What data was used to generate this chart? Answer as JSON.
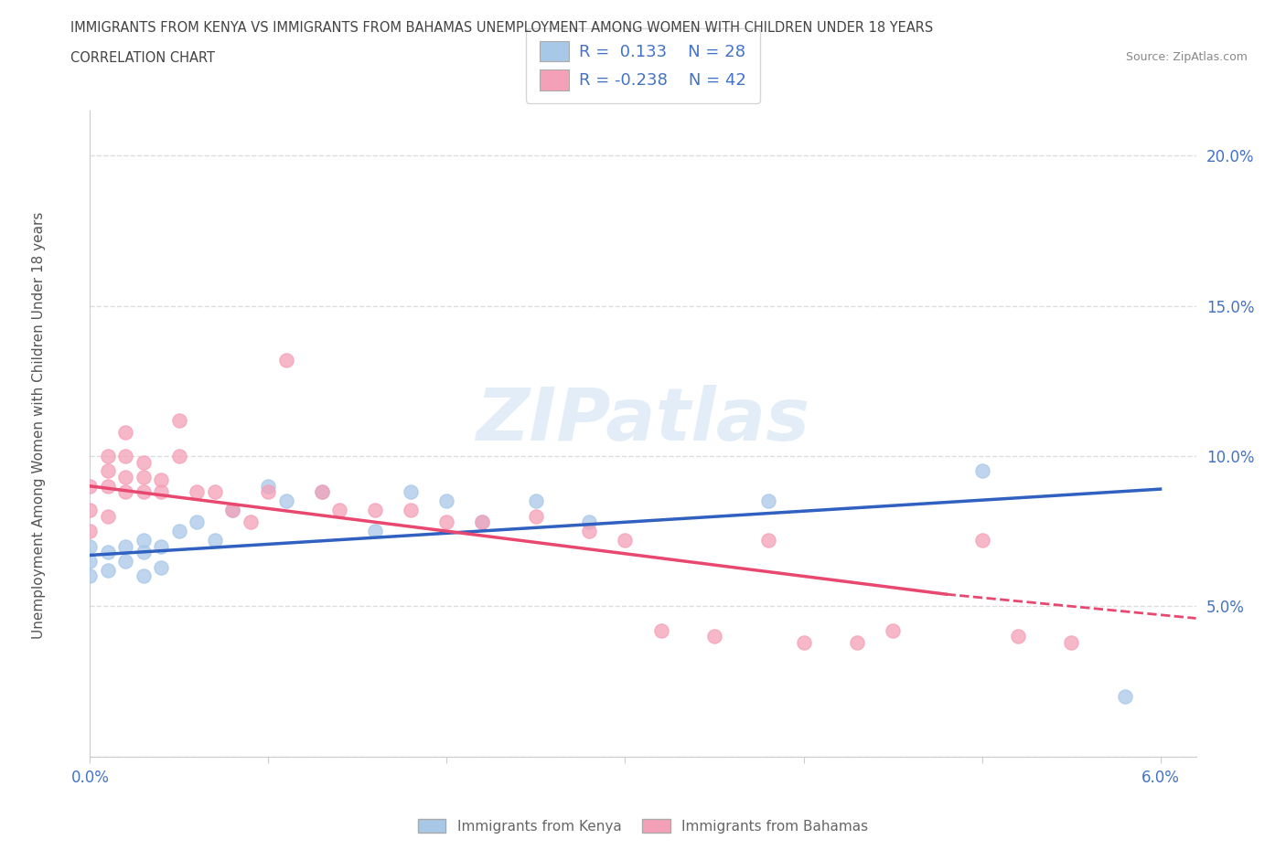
{
  "title_line1": "IMMIGRANTS FROM KENYA VS IMMIGRANTS FROM BAHAMAS UNEMPLOYMENT AMONG WOMEN WITH CHILDREN UNDER 18 YEARS",
  "title_line2": "CORRELATION CHART",
  "source_text": "Source: ZipAtlas.com",
  "ylabel": "Unemployment Among Women with Children Under 18 years",
  "xlim": [
    0.0,
    0.062
  ],
  "ylim": [
    0.0,
    0.215
  ],
  "xticks": [
    0.0,
    0.01,
    0.02,
    0.03,
    0.04,
    0.05,
    0.06
  ],
  "xticklabels": [
    "0.0%",
    "",
    "",
    "",
    "",
    "",
    "6.0%"
  ],
  "yticks": [
    0.0,
    0.05,
    0.1,
    0.15,
    0.2
  ],
  "yticklabels": [
    "",
    "5.0%",
    "10.0%",
    "15.0%",
    "20.0%"
  ],
  "kenya_color": "#a8c8e8",
  "bahamas_color": "#f4a0b8",
  "kenya_line_color": "#3060c0",
  "bahamas_line_color": "#e84870",
  "kenya_R": 0.133,
  "kenya_N": 28,
  "bahamas_R": -0.238,
  "bahamas_N": 42,
  "kenya_scatter_x": [
    0.0,
    0.0,
    0.0,
    0.001,
    0.001,
    0.002,
    0.002,
    0.003,
    0.003,
    0.003,
    0.004,
    0.004,
    0.005,
    0.006,
    0.007,
    0.008,
    0.01,
    0.011,
    0.013,
    0.016,
    0.018,
    0.02,
    0.022,
    0.025,
    0.028,
    0.038,
    0.05,
    0.058
  ],
  "kenya_scatter_y": [
    0.065,
    0.07,
    0.06,
    0.068,
    0.062,
    0.07,
    0.065,
    0.072,
    0.068,
    0.06,
    0.07,
    0.063,
    0.075,
    0.078,
    0.072,
    0.082,
    0.09,
    0.085,
    0.088,
    0.075,
    0.088,
    0.085,
    0.078,
    0.085,
    0.078,
    0.085,
    0.095,
    0.02
  ],
  "bahamas_scatter_x": [
    0.0,
    0.0,
    0.0,
    0.001,
    0.001,
    0.001,
    0.001,
    0.002,
    0.002,
    0.002,
    0.002,
    0.003,
    0.003,
    0.003,
    0.004,
    0.004,
    0.005,
    0.005,
    0.006,
    0.007,
    0.008,
    0.009,
    0.01,
    0.011,
    0.013,
    0.014,
    0.016,
    0.018,
    0.02,
    0.022,
    0.025,
    0.028,
    0.03,
    0.032,
    0.035,
    0.038,
    0.04,
    0.043,
    0.045,
    0.05,
    0.052,
    0.055
  ],
  "bahamas_scatter_y": [
    0.075,
    0.082,
    0.09,
    0.08,
    0.09,
    0.095,
    0.1,
    0.088,
    0.093,
    0.1,
    0.108,
    0.088,
    0.093,
    0.098,
    0.088,
    0.092,
    0.1,
    0.112,
    0.088,
    0.088,
    0.082,
    0.078,
    0.088,
    0.132,
    0.088,
    0.082,
    0.082,
    0.082,
    0.078,
    0.078,
    0.08,
    0.075,
    0.072,
    0.042,
    0.04,
    0.072,
    0.038,
    0.038,
    0.042,
    0.072,
    0.04,
    0.038
  ],
  "watermark_text": "ZIPatlas",
  "background_color": "#ffffff",
  "grid_color": "#dddddd",
  "legend_label_kenya": "R =  0.133    N = 28",
  "legend_label_bahamas": "R = -0.238    N = 42",
  "bottom_legend_kenya": "Immigrants from Kenya",
  "bottom_legend_bahamas": "Immigrants from Bahamas"
}
